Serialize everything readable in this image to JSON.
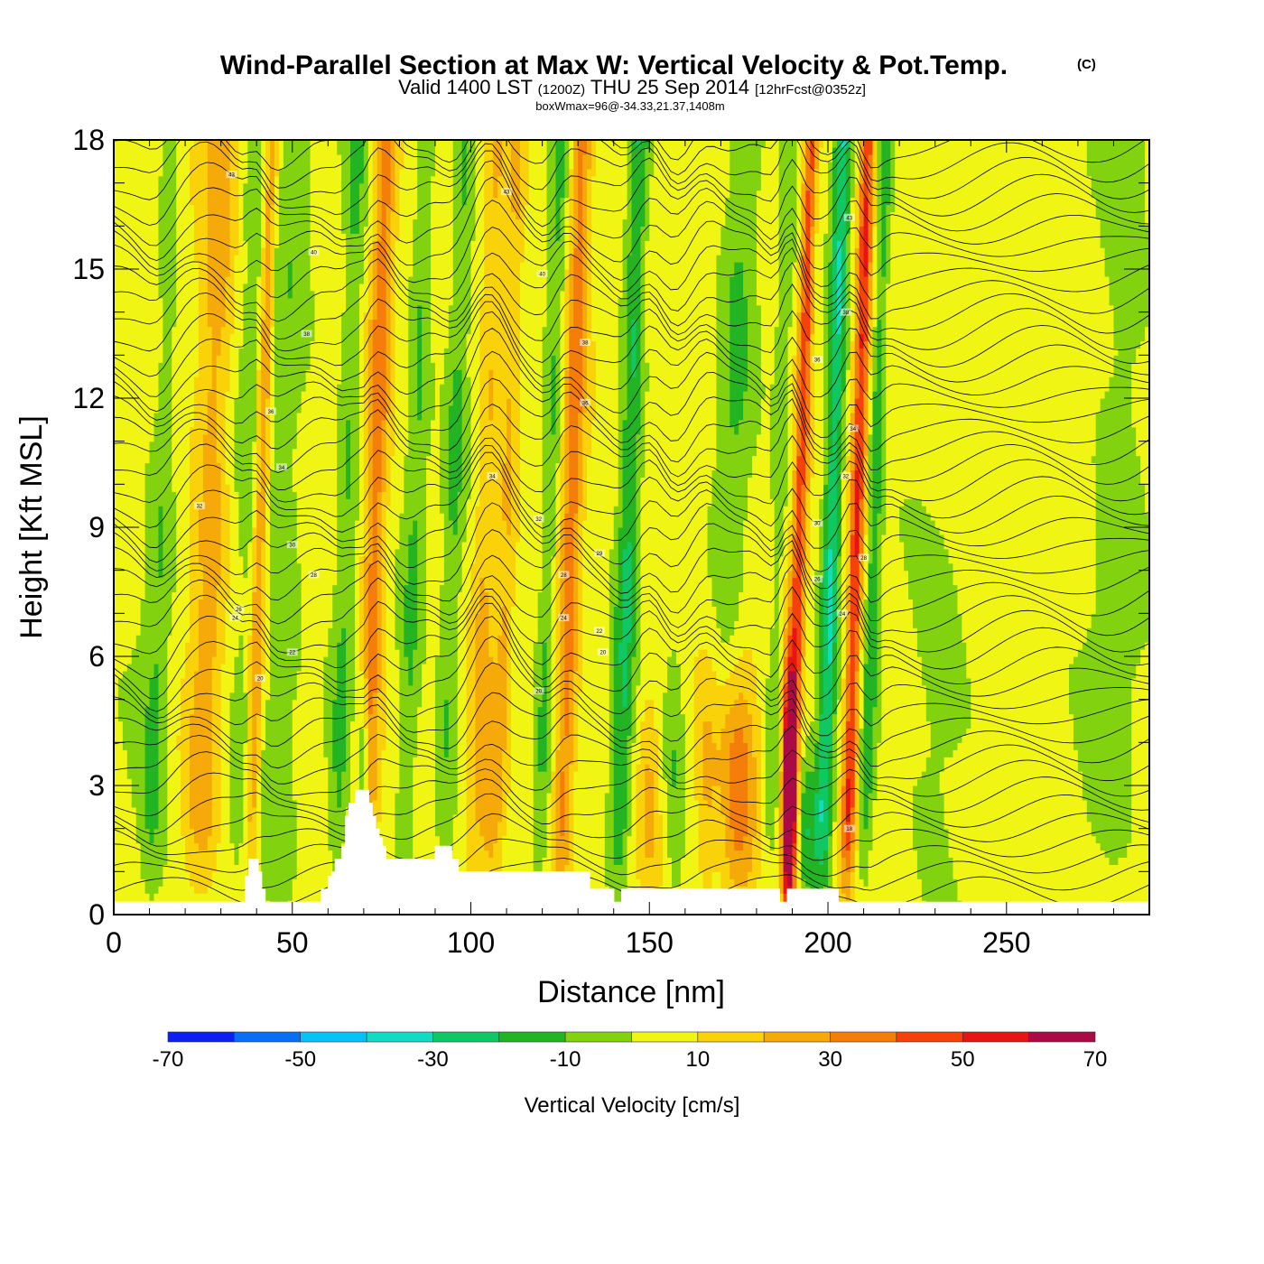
{
  "chart_data": {
    "type": "heatmap",
    "title": "Wind-Parallel Section at Max W: Vertical Velocity & Pot.Temp.",
    "title_mark": "(C)",
    "subtitle": {
      "part1": "Valid 1400 LST",
      "part2": "(1200Z)",
      "part3": "THU 25 Sep 2014",
      "part4": "[12hrFcst@0352z]"
    },
    "info": "boxWmax=96@-34.33,21.37,1408m",
    "xlabel": "Distance [nm]",
    "ylabel": "Height [Kft MSL]",
    "xlim": [
      0,
      290
    ],
    "ylim": [
      0,
      18
    ],
    "xticks": [
      0,
      50,
      100,
      150,
      200,
      250
    ],
    "yticks": [
      0,
      3,
      6,
      9,
      12,
      15,
      18
    ],
    "colorbar": {
      "label": "Vertical Velocity [cm/s]",
      "levels": [
        -70,
        -60,
        -50,
        -40,
        -30,
        -20,
        -10,
        0,
        10,
        20,
        30,
        40,
        50,
        60,
        70
      ],
      "tick_labels": [
        "-70",
        "-50",
        "-30",
        "-10",
        "10",
        "30",
        "50",
        "70"
      ],
      "colors": [
        "#0a1ff0",
        "#0a6ef5",
        "#05c3f5",
        "#0fdcc3",
        "#0fc863",
        "#23b423",
        "#82d20f",
        "#f0f514",
        "#fad20a",
        "#f5aa0a",
        "#f57d0a",
        "#f5410a",
        "#e61414",
        "#aa0a46"
      ]
    },
    "background_value": 5,
    "updraft_features": [
      {
        "x": 26,
        "ztop": 18,
        "width": 5,
        "w": 20
      },
      {
        "x": 40,
        "ztop": 18,
        "width": 2,
        "w": 30
      },
      {
        "x": 72,
        "ztop": 18,
        "width": 3,
        "w": 30
      },
      {
        "x": 103,
        "ztop": 12,
        "width": 3,
        "w": 15
      },
      {
        "x": 105,
        "ztop": 4.5,
        "width": 2.5,
        "w": 15
      },
      {
        "x": 127,
        "ztop": 18,
        "width": 3,
        "w": 30
      },
      {
        "x": 150,
        "ztop": 5,
        "width": 3,
        "w": 15
      },
      {
        "x": 166,
        "ztop": 5,
        "width": 3,
        "w": 15
      },
      {
        "x": 174,
        "ztop": 5.5,
        "width": 6,
        "w": 40
      },
      {
        "x": 189,
        "ztop": 5.3,
        "width": 1.8,
        "w": 75
      },
      {
        "x": 191,
        "ztop": 18,
        "width": 2,
        "w": 40
      },
      {
        "x": 207,
        "ztop": 18,
        "width": 2,
        "w": 45
      },
      {
        "x": 109,
        "ztop": 18,
        "width": 2.5,
        "w": 15
      }
    ],
    "downdraft_features": [
      {
        "x": 10,
        "ztop": 7,
        "width": 6,
        "w": -10
      },
      {
        "x": 12,
        "ztop": 16,
        "width": 3,
        "w": -10
      },
      {
        "x": 37,
        "ztop": 14,
        "width": 6,
        "w": -10
      },
      {
        "x": 47,
        "ztop": 10,
        "width": 5,
        "w": -10
      },
      {
        "x": 64,
        "ztop": 18,
        "width": 3,
        "w": -15
      },
      {
        "x": 70,
        "ztop": 5,
        "width": 1.5,
        "w": -35
      },
      {
        "x": 83,
        "ztop": 18,
        "width": 3,
        "w": -15
      },
      {
        "x": 94,
        "ztop": 18,
        "width": 3,
        "w": -15
      },
      {
        "x": 121,
        "ztop": 18,
        "width": 2.5,
        "w": -15
      },
      {
        "x": 143,
        "ztop": 18,
        "width": 3,
        "w": -25
      },
      {
        "x": 157,
        "ztop": 6,
        "width": 3,
        "w": -15
      },
      {
        "x": 172,
        "ztop": 18,
        "width": 5,
        "w": -15
      },
      {
        "x": 185,
        "ztop": 18,
        "width": 2.5,
        "w": -10
      },
      {
        "x": 194,
        "ztop": 3.5,
        "width": 2.5,
        "w": -20
      },
      {
        "x": 200,
        "ztop": 18,
        "width": 2.5,
        "w": -35
      },
      {
        "x": 212,
        "ztop": 18,
        "width": 2,
        "w": -20
      },
      {
        "x": 231,
        "ztop": 8,
        "width": 10,
        "w": -10
      },
      {
        "x": 280,
        "ztop": 13,
        "width": 8,
        "w": -10
      }
    ],
    "contour_labels": [
      "43",
      "43",
      "43",
      "40",
      "40",
      "38",
      "38",
      "38",
      "36",
      "36",
      "36",
      "34",
      "34",
      "34",
      "32",
      "32",
      "32",
      "30",
      "30",
      "29",
      "28",
      "28",
      "28",
      "26",
      "26",
      "24",
      "24",
      "24",
      "22",
      "22",
      "20",
      "20",
      "20",
      "18"
    ],
    "terrain_height_kft": [
      0.3,
      0.3,
      0.3,
      0.3,
      0.3,
      0.3,
      0.3,
      0.3,
      0.3,
      0.3,
      0.3,
      0.3,
      0.3,
      0.3,
      0.3,
      0.3,
      0.3,
      0.3,
      0.3,
      0.3,
      0.3,
      0.3,
      0.3,
      0.3,
      0.3,
      0.3,
      0.3,
      0.3,
      0.3,
      0.3,
      0.3,
      0.3,
      0.3,
      0.3,
      0.3,
      0.3,
      0.3,
      0.3,
      0.9,
      1.3,
      1.3,
      1.3,
      1.0,
      0.6,
      0.3,
      0.3,
      0.3,
      0.3,
      0.3,
      0.3,
      0.3,
      0.3,
      0.3,
      0.3,
      0.3,
      0.3,
      0.3,
      0.3,
      0.3,
      0.3,
      0.6,
      0.6,
      0.9,
      1.0,
      1.3,
      1.3,
      1.6,
      2.3,
      2.6,
      2.6,
      2.9,
      2.9,
      2.9,
      2.9,
      2.6,
      2.3,
      2.0,
      1.8,
      1.6,
      1.3,
      1.3,
      1.3,
      1.3,
      1.3,
      1.3,
      1.3,
      1.3,
      1.3,
      1.3,
      1.3,
      1.3,
      1.3,
      1.3,
      1.6,
      1.6,
      1.6,
      1.6,
      1.6,
      1.3,
      1.3,
      1.0,
      1.0,
      1.0,
      1.0,
      1.0,
      1.0,
      1.0,
      1.0,
      1.0,
      1.0,
      1.0,
      1.0,
      1.0,
      1.0,
      1.0,
      1.0,
      1.0,
      1.0,
      1.0,
      1.0,
      1.0,
      1.0,
      1.0,
      1.0,
      1.0,
      1.0,
      1.0,
      1.0,
      1.0,
      1.0,
      1.0,
      1.0,
      1.0,
      1.0,
      1.0,
      1.0,
      1.0,
      1.0,
      0.6,
      0.6,
      0.6,
      0.6,
      0.6,
      0.6,
      0.6,
      0.3,
      0.3,
      0.6,
      0.6,
      0.6,
      0.6,
      0.6,
      0.6,
      0.6,
      0.6,
      0.6,
      0.6,
      0.6,
      0.6,
      0.6,
      0.6,
      0.6,
      0.6,
      0.6,
      0.6,
      0.6,
      0.6,
      0.6,
      0.6,
      0.6,
      0.6,
      0.6,
      0.6,
      0.6,
      0.6,
      0.6,
      0.6,
      0.6,
      0.6,
      0.6,
      0.6,
      0.6,
      0.6,
      0.6,
      0.6,
      0.6,
      0.6,
      0.6,
      0.6,
      0.6,
      0.6,
      0.6,
      0.6,
      0.3,
      0.3,
      0.6,
      0.6,
      0.6,
      0.6,
      0.6,
      0.6,
      0.6,
      0.6,
      0.6,
      0.6,
      0.6,
      0.6,
      0.6,
      0.6,
      0.6,
      0.3,
      0.3,
      0.3,
      0.3,
      0.3,
      0.3,
      0.3,
      0.3,
      0.3,
      0.3,
      0.3,
      0.3,
      0.3,
      0.3,
      0.3,
      0.3,
      0.3,
      0.3,
      0.3,
      0.3,
      0.3,
      0.3,
      0.3,
      0.3,
      0.3,
      0.3,
      0.3,
      0.3,
      0.3,
      0.3,
      0.3,
      0.3,
      0.3,
      0.3,
      0.3,
      0.3,
      0.3,
      0.3,
      0.3,
      0.3,
      0.3,
      0.3,
      0.3,
      0.3,
      0.3,
      0.3,
      0.3,
      0.3,
      0.3,
      0.3,
      0.3,
      0.3,
      0.3,
      0.3,
      0.3,
      0.3,
      0.3,
      0.3,
      0.3,
      0.3,
      0.3,
      0.3,
      0.3,
      0.3,
      0.3,
      0.3,
      0.3,
      0.3,
      0.3,
      0.3,
      0.3,
      0.3,
      0.3,
      0.3,
      0.3,
      0.3,
      0.3,
      0.3,
      0.3,
      0.3,
      0.3,
      0.3,
      0.3,
      0.3,
      0.3,
      0.3,
      0.3,
      0.3,
      0.3,
      0.3
    ]
  }
}
